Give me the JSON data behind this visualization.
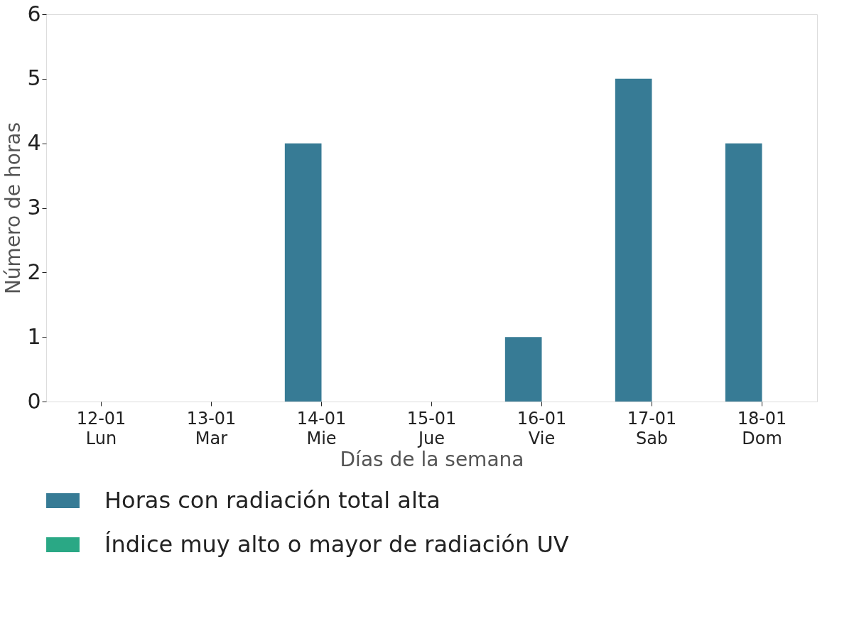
{
  "chart_data": {
    "type": "bar",
    "xlabel": "Días de la semana",
    "ylabel": "Número de horas",
    "categories": [
      "12-01\nLun",
      "13-01\nMar",
      "14-01\nMie",
      "15-01\nJue",
      "16-01\nVie",
      "17-01\nSab",
      "18-01\nDom"
    ],
    "series": [
      {
        "name": "Horas con radiación total alta",
        "color": "#377b95",
        "values": [
          0,
          0,
          4,
          0,
          1,
          5,
          4
        ]
      },
      {
        "name": "Índice muy alto o mayor de radiación UV",
        "color": "#2aa885",
        "values": [
          0,
          0,
          0,
          0,
          0,
          0,
          0
        ]
      }
    ],
    "ylim": [
      0,
      6
    ],
    "yticks": [
      0,
      1,
      2,
      3,
      4,
      5,
      6
    ],
    "grid": false,
    "legend": "bottom"
  }
}
